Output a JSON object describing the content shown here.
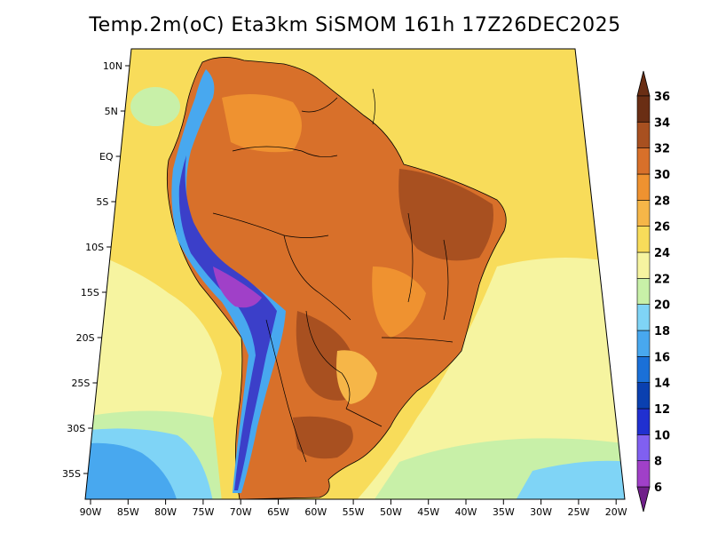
{
  "title": "Temp.2m(oC) Eta3km SiSMOM 161h 17Z26DEC2025",
  "map": {
    "lat_ticks": [
      "10N",
      "5N",
      "EQ",
      "5S",
      "10S",
      "15S",
      "20S",
      "25S",
      "30S",
      "35S"
    ],
    "lon_ticks": [
      "90W",
      "85W",
      "80W",
      "75W",
      "70W",
      "65W",
      "60W",
      "55W",
      "50W",
      "45W",
      "40W",
      "35W",
      "30W",
      "25W",
      "20W"
    ]
  },
  "colorbar": {
    "labels": [
      "6",
      "8",
      "10",
      "12",
      "14",
      "16",
      "18",
      "20",
      "22",
      "24",
      "26",
      "28",
      "30",
      "32",
      "34",
      "36"
    ],
    "colors": [
      "#70208a",
      "#a040c8",
      "#8060f0",
      "#2030d0",
      "#0a40b0",
      "#1a70d8",
      "#48a8ef",
      "#7fd4f6",
      "#c8f0a8",
      "#f6f4a0",
      "#f8dc5a",
      "#f6b648",
      "#ef9230",
      "#d8702a",
      "#a85020",
      "#6a2e14"
    ],
    "unit": "oC"
  },
  "colors": {
    "ocean_warm": "#f8dc5a",
    "ocean_mild": "#f6f4a0",
    "ocean_cool": "#c8f0a8",
    "land_hot": "#d8702a",
    "land_very_hot": "#a85020",
    "andes_cold": "#3b3fc9"
  }
}
